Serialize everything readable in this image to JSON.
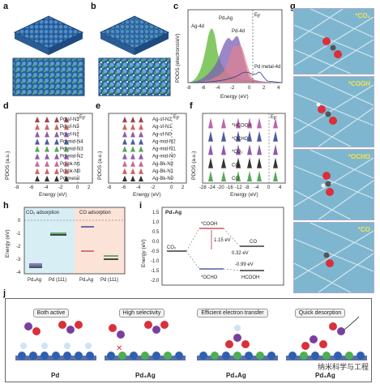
{
  "panel_labels": [
    "a",
    "b",
    "c",
    "d",
    "e",
    "f",
    "g",
    "h",
    "i",
    "j"
  ],
  "c": {
    "ylabel": "PDOS (electrons/eV)",
    "xlabel": "Energy (eV)",
    "ef": "E",
    "ef_sub": "F",
    "legend": [
      "Ag-4d",
      "Pd₄Ag",
      "Pd-4d",
      "Pd metal-4d"
    ],
    "xticks": [
      "-8",
      "-6",
      "-4",
      "-2",
      "0",
      "2",
      "4"
    ],
    "yticks": [
      "0",
      "1",
      "2",
      "3",
      "4",
      "5",
      "6",
      "7"
    ]
  },
  "d": {
    "ylabel": "PDOS (a.u.)",
    "xlabel": "Energy (eV)",
    "ef": "E",
    "ef_sub": "F",
    "rows": [
      "Pd-sf-N3",
      "Pd-sf-N3",
      "Pd-sf-N2",
      "Pd-mid-N4",
      "Pd-mid-N3",
      "Pd-mid-N2",
      "Pd-bk-N1",
      "Pd-bk-N0",
      "Pd-metal"
    ],
    "colors": [
      "#8a2a2a",
      "#c44a4a",
      "#7a3f9e",
      "#2e3f8f",
      "#3a9a3a",
      "#7a3f9e",
      "#c05080",
      "#c44a4a",
      "#111111"
    ],
    "xticks": [
      "-8",
      "-6",
      "-4",
      "-2",
      "0",
      "2"
    ]
  },
  "e": {
    "ylabel": "PDOS (a.u.)",
    "xlabel": "Energy (eV)",
    "ef": "E",
    "ef_sub": "F",
    "rows": [
      "Ag-sf-N2",
      "Ag-sf-N1",
      "Ag-sf-N0",
      "Ag-mid-N2",
      "Ag-mid-N1",
      "Ag-mid-N0",
      "Ag-Bk-N2",
      "Ag-Bk-N1",
      "Ag-Bk-N0"
    ],
    "colors": [
      "#8a2a2a",
      "#c44a4a",
      "#7a3f9e",
      "#2e3f8f",
      "#3a9a3a",
      "#7a3f9e",
      "#c05080",
      "#c44a4a",
      "#111111"
    ],
    "xticks": [
      "-8",
      "-6",
      "-4",
      "-2",
      "0",
      "2"
    ]
  },
  "f": {
    "ylabel": "PDOS (a.u.)",
    "xlabel": "Energy (eV)",
    "ef": "E",
    "ef_sub": "F",
    "rows": [
      "*HCOOH",
      "*OCHO",
      "*CO₂",
      "CO₂",
      "CO"
    ],
    "colors": [
      "#b04aa0",
      "#2e3f8f",
      "#7a3f9e",
      "#111111",
      "#3a9a3a"
    ],
    "xticks": [
      "-28",
      "-24",
      "-20",
      "-16",
      "-12",
      "-8",
      "-4",
      "0",
      "4"
    ]
  },
  "g": {
    "labels": [
      "*CO₂",
      "*COOH",
      "*OCHO",
      "*CO"
    ]
  },
  "h": {
    "ylabel": "Energy (eV)",
    "left_title": "CO₂ adsorption",
    "right_title": "CO adsorption",
    "xticks": [
      "Pd₄Ag",
      "Pd (111)",
      "Pd₄Ag",
      "Pd (111)"
    ],
    "yticks": [
      "0",
      "-1",
      "-2",
      "-3",
      "-4"
    ]
  },
  "i": {
    "title": "Pd₄Ag",
    "ylabel": "Energy (eV)",
    "species": [
      "CO₂",
      "*COOH",
      "CO",
      "*OCHO",
      "HCOOH"
    ],
    "values": [
      "1.15 eV",
      "0.32 eV",
      "-0.99 eV"
    ],
    "yticks": [
      "1.5",
      "1.0",
      "0.5",
      "0.0",
      "-0.5",
      "-1.0",
      "-1.5",
      "-2.0"
    ]
  },
  "j": {
    "tags": [
      "Both active",
      "High selectivity",
      "Efficient electron transfer",
      "Quick desorption"
    ],
    "catalysts": [
      "Pd",
      "Pd₄Ag",
      "Pd₄Ag",
      "Pd₄Ag"
    ]
  },
  "watermark": "纳米科学与工程"
}
